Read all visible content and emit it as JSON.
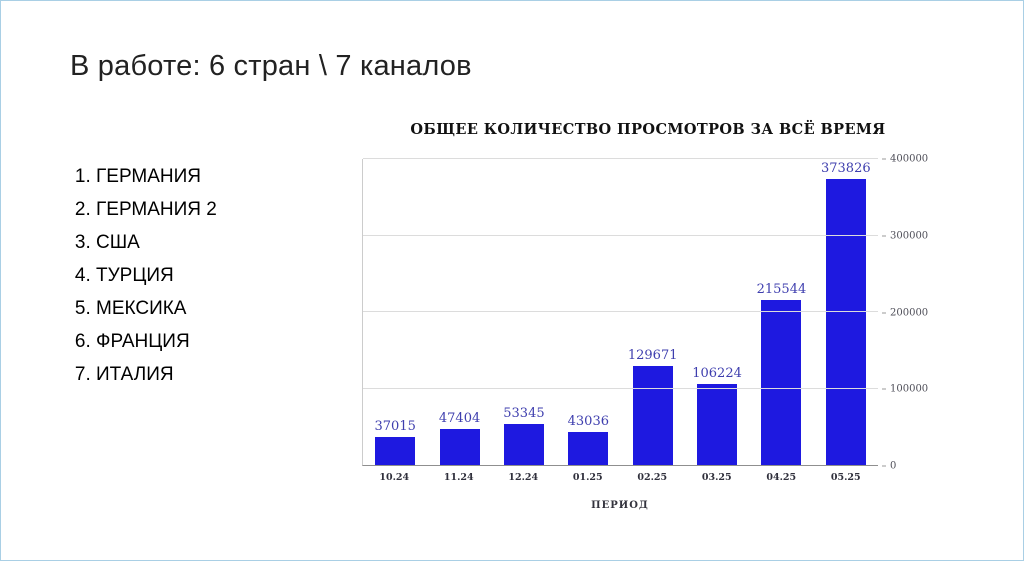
{
  "slide": {
    "title": "В работе: 6 стран \\ 7 каналов",
    "countries": [
      "ГЕРМАНИЯ",
      "ГЕРМАНИЯ 2",
      "США",
      "ТУРЦИЯ",
      "МЕКСИКА",
      "ФРАНЦИЯ",
      "ИТАЛИЯ"
    ]
  },
  "chart_data": {
    "type": "bar",
    "title": "ОБЩЕЕ КОЛИЧЕСТВО ПРОСМОТРОВ ЗА ВСЁ ВРЕМЯ",
    "categories": [
      "10.24",
      "11.24",
      "12.24",
      "01.25",
      "02.25",
      "03.25",
      "04.25",
      "05.25"
    ],
    "values": [
      37015,
      47404,
      53345,
      43036,
      129671,
      106224,
      215544,
      373826
    ],
    "xlabel": "ПЕРИОД",
    "ylabel": "",
    "ylim": [
      0,
      400000
    ],
    "yticks": [
      0,
      100000,
      200000,
      300000,
      400000
    ],
    "ytick_labels": [
      "0",
      "100000",
      "200000",
      "300000",
      "400000"
    ],
    "grid": true,
    "legend": "none",
    "y_axis_position": "right",
    "bar_color": "#1e19e0",
    "label_color": "#3e3eae"
  }
}
